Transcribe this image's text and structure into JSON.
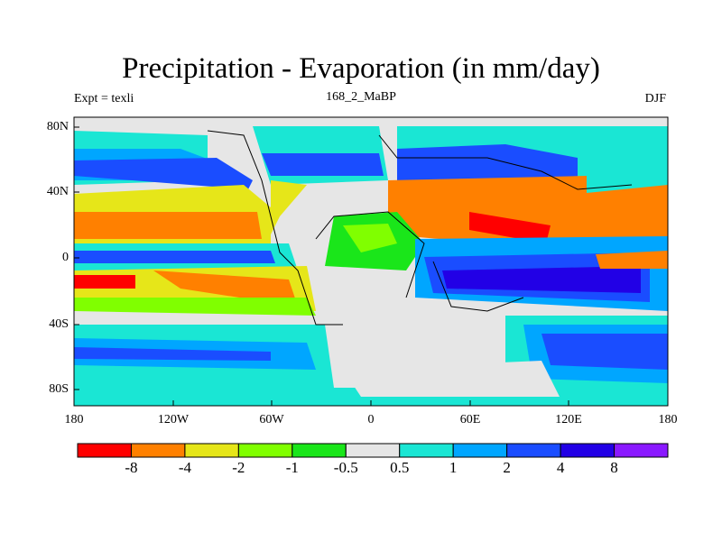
{
  "title": "Precipitation - Evaporation (in mm/day)",
  "left_label": "Expt = texli",
  "center_label": "168_2_MaBP",
  "right_label": "DJF",
  "lat_ticks": [
    "80N",
    "40N",
    "0",
    "40S",
    "80S"
  ],
  "lon_ticks": [
    "180",
    "120W",
    "60W",
    "0",
    "60E",
    "120E",
    "180"
  ],
  "colorbar": {
    "colors": [
      "#ff0000",
      "#ff8000",
      "#e6e619",
      "#80ff00",
      "#1ae61a",
      "#e6e6e6",
      "#1ae6d4",
      "#00a6ff",
      "#1a4dff",
      "#2200e6",
      "#8a19ff"
    ],
    "labels": [
      "-8",
      "-4",
      "-2",
      "-1",
      "-0.5",
      "0.5",
      "1",
      "2",
      "4",
      "8"
    ]
  }
}
